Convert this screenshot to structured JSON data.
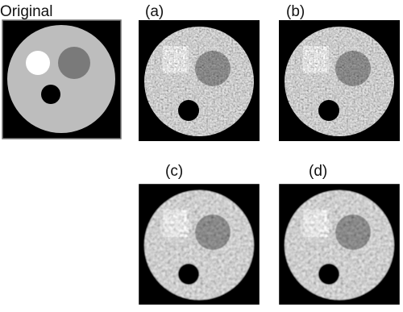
{
  "panels": [
    {
      "label": "Original"
    },
    {
      "label": "(a)"
    },
    {
      "label": "(b)"
    },
    {
      "label": "(c)"
    },
    {
      "label": "(d)"
    }
  ]
}
